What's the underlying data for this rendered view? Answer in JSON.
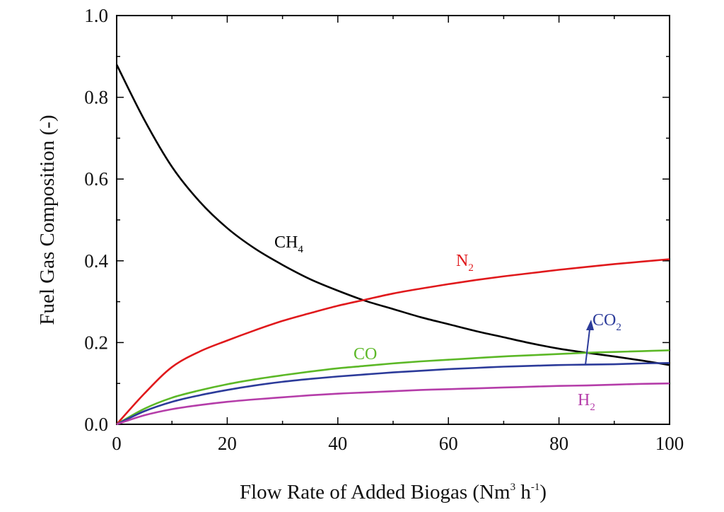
{
  "chart_data": {
    "type": "line",
    "xlabel": "Flow Rate of Added Biogas (Nm",
    "xlabel_sup": "3",
    "xlabel_mid": " h",
    "xlabel_sup2": "-1",
    "xlabel_end": ")",
    "ylabel": "Fuel Gas Composition (-)",
    "xlim": [
      0,
      100
    ],
    "ylim": [
      0,
      1.0
    ],
    "xticks": [
      0,
      20,
      40,
      60,
      80,
      100
    ],
    "xtick_labels": [
      "0",
      "20",
      "40",
      "60",
      "80",
      "100"
    ],
    "yticks": [
      0.0,
      0.2,
      0.4,
      0.6,
      0.8,
      1.0
    ],
    "ytick_labels": [
      "0.0",
      "0.2",
      "0.4",
      "0.6",
      "0.8",
      "1.0"
    ],
    "x": [
      0,
      5,
      10,
      15,
      20,
      25,
      30,
      35,
      40,
      45,
      50,
      55,
      60,
      65,
      70,
      75,
      80,
      85,
      90,
      95,
      100
    ],
    "series": [
      {
        "name": "CH4",
        "label_main": "CH",
        "label_sub": "4",
        "color": "#000000",
        "values": [
          0.88,
          0.745,
          0.63,
          0.545,
          0.48,
          0.43,
          0.39,
          0.355,
          0.327,
          0.302,
          0.282,
          0.262,
          0.245,
          0.228,
          0.213,
          0.198,
          0.185,
          0.175,
          0.166,
          0.156,
          0.145
        ]
      },
      {
        "name": "N2",
        "label_main": "N",
        "label_sub": "2",
        "color": "#e0191c",
        "values": [
          0.0,
          0.075,
          0.14,
          0.178,
          0.205,
          0.23,
          0.253,
          0.272,
          0.29,
          0.305,
          0.32,
          0.332,
          0.343,
          0.353,
          0.362,
          0.37,
          0.378,
          0.385,
          0.392,
          0.398,
          0.404
        ]
      },
      {
        "name": "CO",
        "label_main": "CO",
        "label_sub": "",
        "color": "#5cb827",
        "values": [
          0.0,
          0.038,
          0.065,
          0.083,
          0.098,
          0.11,
          0.12,
          0.129,
          0.137,
          0.143,
          0.149,
          0.154,
          0.158,
          0.162,
          0.166,
          0.169,
          0.172,
          0.175,
          0.177,
          0.179,
          0.181
        ]
      },
      {
        "name": "CO2",
        "label_main": "CO",
        "label_sub": "2",
        "color": "#2c3b9a",
        "values": [
          0.0,
          0.032,
          0.055,
          0.071,
          0.084,
          0.095,
          0.104,
          0.111,
          0.117,
          0.122,
          0.127,
          0.131,
          0.135,
          0.138,
          0.141,
          0.143,
          0.145,
          0.146,
          0.147,
          0.149,
          0.15
        ]
      },
      {
        "name": "H2",
        "label_main": "H",
        "label_sub": "2",
        "color": "#b53da9",
        "values": [
          0.0,
          0.022,
          0.037,
          0.047,
          0.055,
          0.061,
          0.066,
          0.071,
          0.075,
          0.078,
          0.081,
          0.084,
          0.086,
          0.088,
          0.09,
          0.092,
          0.094,
          0.095,
          0.097,
          0.099,
          0.1
        ]
      }
    ]
  }
}
